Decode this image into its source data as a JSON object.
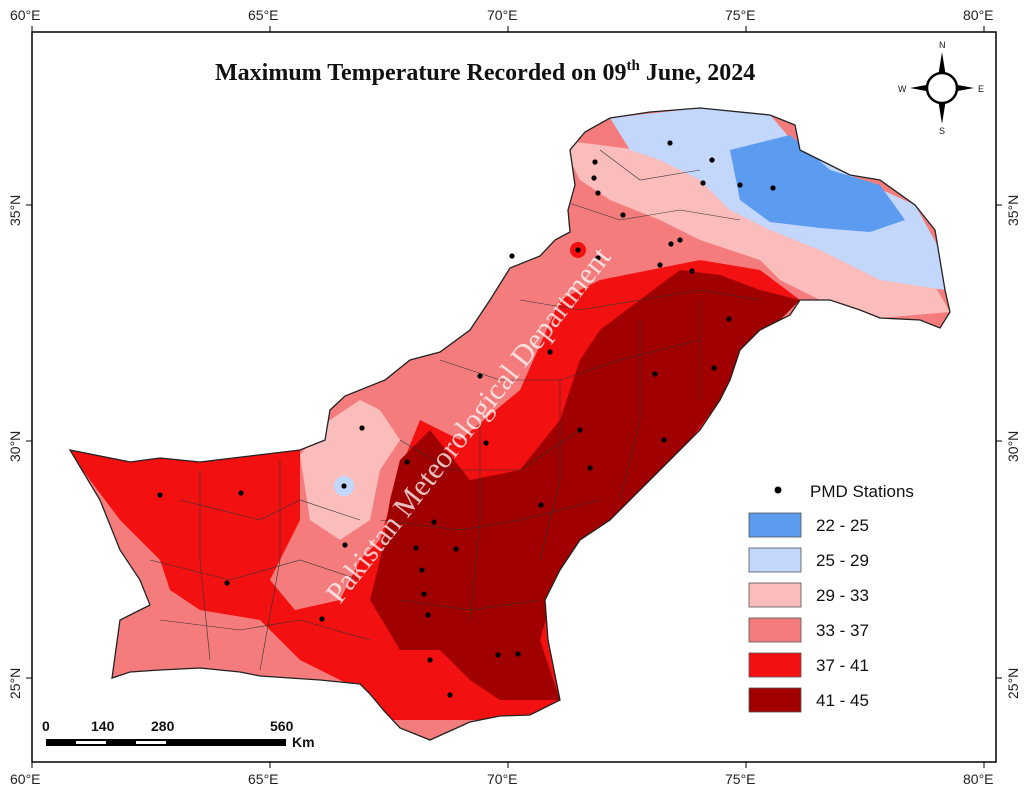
{
  "title": {
    "prefix": "Maximum Temperature Recorded on 09",
    "superscript": "th",
    "suffix": " June, 2024"
  },
  "axes": {
    "lon_labels": [
      "60°E",
      "65°E",
      "70°E",
      "75°E",
      "80°E"
    ],
    "lat_labels": [
      "35°N",
      "30°N",
      "25°N"
    ]
  },
  "legend": {
    "stations_label": "PMD Stations",
    "classes": [
      {
        "label": "22 - 25",
        "color": "#5b9bf0"
      },
      {
        "label": "25 - 29",
        "color": "#c3d6fb"
      },
      {
        "label": "29 - 33",
        "color": "#fbbcbc"
      },
      {
        "label": "33 - 37",
        "color": "#f47c7c"
      },
      {
        "label": "37 - 41",
        "color": "#f21010"
      },
      {
        "label": "41 - 45",
        "color": "#a00000"
      }
    ]
  },
  "scale_bar": {
    "ticks": [
      "0",
      "140",
      "280",
      "560"
    ],
    "unit": "Km"
  },
  "compass": {
    "n": "N",
    "s": "S",
    "e": "E",
    "w": "W"
  },
  "watermark": "Pakistan Meteorological Department"
}
